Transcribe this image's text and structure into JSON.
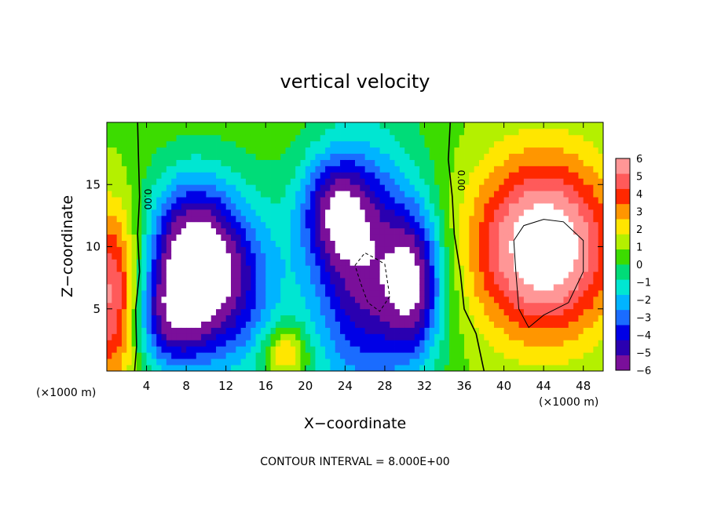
{
  "chart_data": {
    "type": "heatmap",
    "title": "vertical velocity",
    "xlabel": "X−coordinate",
    "ylabel": "Z−coordinate",
    "x_unit_left": "(×1000 m)",
    "x_unit_right": "(×1000 m)",
    "footer": "CONTOUR INTERVAL = 8.000E+00",
    "xlim": [
      0,
      50
    ],
    "ylim": [
      0,
      20
    ],
    "x_ticks": [
      4,
      8,
      12,
      16,
      20,
      24,
      28,
      32,
      36,
      40,
      44,
      48
    ],
    "y_ticks": [
      5,
      10,
      15
    ],
    "contour_labels": [
      "0.00",
      "0.00"
    ],
    "colorbar": {
      "range": [
        -6,
        6
      ],
      "ticks": [
        6,
        5,
        4,
        3,
        2,
        1,
        0,
        -1,
        -2,
        -3,
        -4,
        -5,
        -6
      ],
      "tick_labels": [
        "6",
        "5",
        "4",
        "3",
        "2",
        "1",
        "0",
        "−1",
        "−2",
        "−3",
        "−4",
        "−5",
        "−6"
      ],
      "colors": [
        "#7a0f9a",
        "#2a00b0",
        "#0000e6",
        "#1a6cff",
        "#00b4ff",
        "#00e6d2",
        "#00dc78",
        "#3cdc00",
        "#b4f000",
        "#ffe600",
        "#ff9600",
        "#ff2800",
        "#ff5a5a",
        "#ff9696"
      ]
    },
    "features": [
      {
        "x": 8,
        "z": 10,
        "sx": 3,
        "sz": 4,
        "w": -5
      },
      {
        "x": 10,
        "z": 7,
        "sx": 3,
        "sz": 5,
        "w": -4
      },
      {
        "x": 6,
        "z": 4,
        "sx": 2.5,
        "sz": 3,
        "w": -4
      },
      {
        "x": 14,
        "z": 7,
        "sx": 3,
        "sz": 5,
        "w": -3
      },
      {
        "x": 26,
        "z": 8,
        "sx": 4,
        "sz": 7,
        "w": -6
      },
      {
        "x": 23,
        "z": 13,
        "sx": 2.5,
        "sz": 3,
        "w": -4
      },
      {
        "x": 31,
        "z": 7,
        "sx": 2,
        "sz": 4,
        "w": -5
      },
      {
        "x": 44,
        "z": 10,
        "sx": 5,
        "sz": 5,
        "w": 7
      },
      {
        "x": 0.5,
        "z": 6,
        "sx": 2,
        "sz": 5,
        "w": 5
      },
      {
        "x": 18,
        "z": 1.5,
        "sx": 1.5,
        "sz": 1.5,
        "w": 3
      }
    ]
  }
}
